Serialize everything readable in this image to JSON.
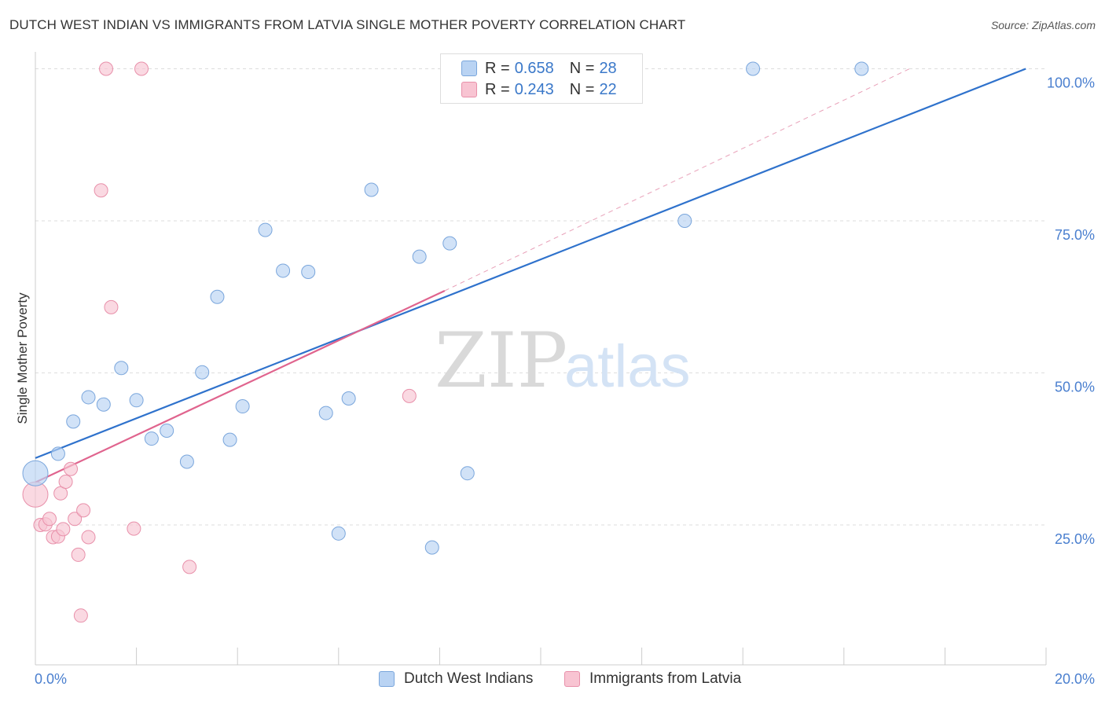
{
  "title": "DUTCH WEST INDIAN VS IMMIGRANTS FROM LATVIA SINGLE MOTHER POVERTY CORRELATION CHART",
  "source": "Source: ZipAtlas.com",
  "watermark": {
    "zip": "ZIP",
    "atlas": "atlas"
  },
  "legend": {
    "series1": {
      "r_label": "R =",
      "r_value": "0.658",
      "n_label": "N =",
      "n_value": "28"
    },
    "series2": {
      "r_label": "R =",
      "r_value": "0.243",
      "n_label": "N =",
      "n_value": "22"
    }
  },
  "bottom_legend": {
    "series1": "Dutch West Indians",
    "series2": "Immigrants from Latvia"
  },
  "colors": {
    "blue_fill": "#b9d3f3",
    "blue_stroke": "#7aa6dc",
    "blue_line": "#2f72cc",
    "pink_fill": "#f8c4d2",
    "pink_stroke": "#e890aa",
    "pink_line": "#e0648e",
    "axis_text": "#4a7fcf",
    "grid": "#dddddd"
  },
  "chart_data": {
    "type": "scatter",
    "title": "DUTCH WEST INDIAN VS IMMIGRANTS FROM LATVIA SINGLE MOTHER POVERTY CORRELATION CHART",
    "xlabel": "",
    "ylabel": "Single Mother Poverty",
    "xlim": [
      0,
      20
    ],
    "ylim": [
      2,
      102
    ],
    "x_tick_labels": [
      "0.0%",
      "20.0%"
    ],
    "y_ticks": [
      25,
      50,
      75,
      100
    ],
    "y_tick_labels": [
      "25.0%",
      "50.0%",
      "75.0%",
      "100.0%"
    ],
    "series": [
      {
        "name": "Dutch West Indians",
        "r": 0.658,
        "n": 28,
        "trend": {
          "x0": 0,
          "y0": 36,
          "x1": 19.6,
          "y1": 100
        },
        "points": [
          {
            "x": 0.0,
            "y": 33.5,
            "big": true
          },
          {
            "x": 0.45,
            "y": 36.7
          },
          {
            "x": 0.75,
            "y": 42.0
          },
          {
            "x": 1.05,
            "y": 46.0
          },
          {
            "x": 1.35,
            "y": 44.8
          },
          {
            "x": 1.7,
            "y": 50.8
          },
          {
            "x": 2.0,
            "y": 45.5
          },
          {
            "x": 2.3,
            "y": 39.2
          },
          {
            "x": 2.6,
            "y": 40.5
          },
          {
            "x": 3.0,
            "y": 35.4
          },
          {
            "x": 3.3,
            "y": 50.1
          },
          {
            "x": 3.6,
            "y": 62.5
          },
          {
            "x": 3.85,
            "y": 39.0
          },
          {
            "x": 4.1,
            "y": 44.5
          },
          {
            "x": 4.55,
            "y": 73.5
          },
          {
            "x": 4.9,
            "y": 66.8
          },
          {
            "x": 5.4,
            "y": 66.6
          },
          {
            "x": 5.75,
            "y": 43.4
          },
          {
            "x": 6.2,
            "y": 45.8
          },
          {
            "x": 6.0,
            "y": 23.6
          },
          {
            "x": 6.65,
            "y": 80.1
          },
          {
            "x": 7.6,
            "y": 69.1
          },
          {
            "x": 7.85,
            "y": 21.3
          },
          {
            "x": 8.2,
            "y": 71.3
          },
          {
            "x": 8.55,
            "y": 33.5
          },
          {
            "x": 12.85,
            "y": 75.0
          },
          {
            "x": 14.2,
            "y": 100.0
          },
          {
            "x": 16.35,
            "y": 100.0
          }
        ]
      },
      {
        "name": "Immigrants from Latvia",
        "r": 0.243,
        "n": 22,
        "trend": {
          "x0": 0,
          "y0": 32,
          "x1": 8.1,
          "y1": 63.5
        },
        "trend_dashed": {
          "x0": 8.1,
          "y0": 63.5,
          "x1": 17.3,
          "y1": 100
        },
        "points": [
          {
            "x": 0.0,
            "y": 30.0,
            "big": true
          },
          {
            "x": 0.1,
            "y": 25.0
          },
          {
            "x": 0.2,
            "y": 25.1
          },
          {
            "x": 0.28,
            "y": 26.0
          },
          {
            "x": 0.35,
            "y": 23.0
          },
          {
            "x": 0.45,
            "y": 23.1
          },
          {
            "x": 0.5,
            "y": 30.2
          },
          {
            "x": 0.55,
            "y": 24.3
          },
          {
            "x": 0.6,
            "y": 32.1
          },
          {
            "x": 0.7,
            "y": 34.2
          },
          {
            "x": 0.78,
            "y": 26.0
          },
          {
            "x": 0.85,
            "y": 20.1
          },
          {
            "x": 0.9,
            "y": 10.1
          },
          {
            "x": 0.95,
            "y": 27.4
          },
          {
            "x": 1.05,
            "y": 23.0
          },
          {
            "x": 1.3,
            "y": 80.0
          },
          {
            "x": 1.4,
            "y": 100.0
          },
          {
            "x": 1.5,
            "y": 60.8
          },
          {
            "x": 1.95,
            "y": 24.4
          },
          {
            "x": 2.1,
            "y": 100.0
          },
          {
            "x": 3.05,
            "y": 18.1
          },
          {
            "x": 7.4,
            "y": 46.2
          }
        ]
      }
    ]
  }
}
